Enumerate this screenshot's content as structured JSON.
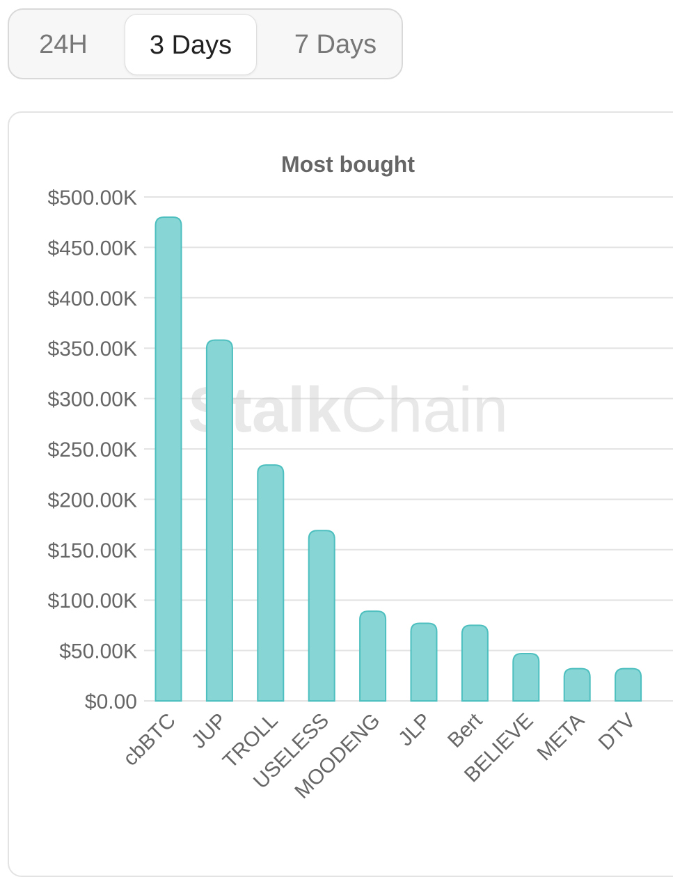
{
  "tabs": [
    {
      "label": "24H",
      "selected": false
    },
    {
      "label": "3 Days",
      "selected": true
    },
    {
      "label": "7 Days",
      "selected": false
    }
  ],
  "watermark": {
    "bold": "Stalk",
    "light": "Chain"
  },
  "colors": {
    "bar_fill": "#88d5d5",
    "bar_stroke": "#4dbfbf",
    "grid": "#e3e3e3",
    "axis_text": "#666666"
  },
  "chart_data": {
    "type": "bar",
    "title": "Most bought",
    "xlabel": "",
    "ylabel": "",
    "categories": [
      "cbBTC",
      "JUP",
      "TROLL",
      "USELESS",
      "MOODENG",
      "JLP",
      "Bert",
      "BELIEVE",
      "META",
      "DTV"
    ],
    "values": [
      480000,
      358000,
      234000,
      169000,
      89000,
      77000,
      75000,
      47000,
      32000,
      32000
    ],
    "ylim": [
      0,
      500000
    ],
    "yticks": [
      0,
      50000,
      100000,
      150000,
      200000,
      250000,
      300000,
      350000,
      400000,
      450000,
      500000
    ],
    "ytick_labels": [
      "$0.00",
      "$50.00K",
      "$100.00K",
      "$150.00K",
      "$200.00K",
      "$250.00K",
      "$300.00K",
      "$350.00K",
      "$400.00K",
      "$450.00K",
      "$500.00K"
    ],
    "grid": true,
    "legend": "none"
  }
}
